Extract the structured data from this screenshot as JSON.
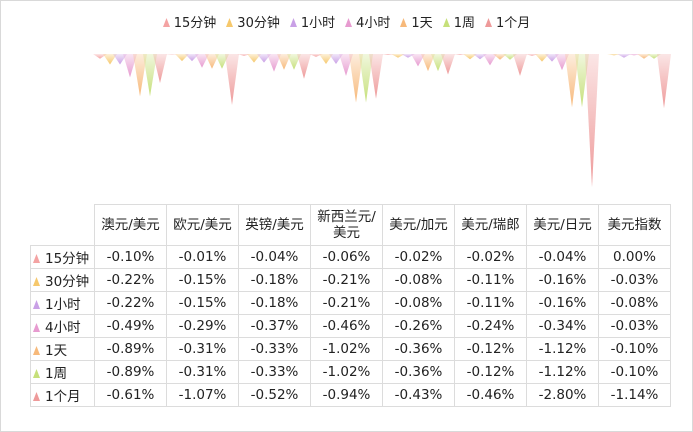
{
  "chart_data": {
    "type": "bar",
    "categories": [
      "澳元/美元",
      "欧元/美元",
      "英镑/美元",
      "新西兰元/\n美元",
      "美元/加元",
      "美元/瑞郎",
      "美元/日元",
      "美元指数"
    ],
    "series": [
      {
        "name": "15分钟",
        "color": "#f4a3a3",
        "values": [
          -0.1,
          -0.01,
          -0.04,
          -0.06,
          -0.02,
          -0.02,
          -0.04,
          0.0
        ],
        "labels": [
          "-0.10%",
          "-0.01%",
          "-0.04%",
          "-0.06%",
          "-0.02%",
          "-0.02%",
          "-0.04%",
          "0.00%"
        ]
      },
      {
        "name": "30分钟",
        "color": "#f6c86c",
        "values": [
          -0.22,
          -0.15,
          -0.18,
          -0.21,
          -0.08,
          -0.11,
          -0.16,
          -0.03
        ],
        "labels": [
          "-0.22%",
          "-0.15%",
          "-0.18%",
          "-0.21%",
          "-0.08%",
          "-0.11%",
          "-0.16%",
          "-0.03%"
        ]
      },
      {
        "name": "1小时",
        "color": "#c9a0e6",
        "values": [
          -0.22,
          -0.15,
          -0.18,
          -0.21,
          -0.08,
          -0.11,
          -0.16,
          -0.08
        ],
        "labels": [
          "-0.22%",
          "-0.15%",
          "-0.18%",
          "-0.21%",
          "-0.08%",
          "-0.11%",
          "-0.16%",
          "-0.08%"
        ]
      },
      {
        "name": "4小时",
        "color": "#e79bd0",
        "values": [
          -0.49,
          -0.29,
          -0.37,
          -0.46,
          -0.26,
          -0.24,
          -0.34,
          -0.03
        ],
        "labels": [
          "-0.49%",
          "-0.29%",
          "-0.37%",
          "-0.46%",
          "-0.26%",
          "-0.24%",
          "-0.34%",
          "-0.03%"
        ]
      },
      {
        "name": "1天",
        "color": "#f7b97a",
        "values": [
          -0.89,
          -0.31,
          -0.33,
          -1.02,
          -0.36,
          -0.12,
          -1.12,
          -0.1
        ],
        "labels": [
          "-0.89%",
          "-0.31%",
          "-0.33%",
          "-1.02%",
          "-0.36%",
          "-0.12%",
          "-1.12%",
          "-0.10%"
        ]
      },
      {
        "name": "1周",
        "color": "#c6e07a",
        "values": [
          -0.89,
          -0.31,
          -0.33,
          -1.02,
          -0.36,
          -0.12,
          -1.12,
          -0.1
        ],
        "labels": [
          "-0.89%",
          "-0.31%",
          "-0.33%",
          "-1.02%",
          "-0.36%",
          "-0.12%",
          "-1.12%",
          "-0.10%"
        ]
      },
      {
        "name": "1个月",
        "color": "#ee9a9a",
        "values": [
          -0.61,
          -1.07,
          -0.52,
          -0.94,
          -0.43,
          -0.46,
          -2.8,
          -1.14
        ],
        "labels": [
          "-0.61%",
          "-1.07%",
          "-0.52%",
          "-0.94%",
          "-0.43%",
          "-0.46%",
          "-2.80%",
          "-1.14%"
        ]
      }
    ],
    "ylim": [
      -2.9,
      0
    ],
    "legend_position": "top",
    "grid": false
  }
}
